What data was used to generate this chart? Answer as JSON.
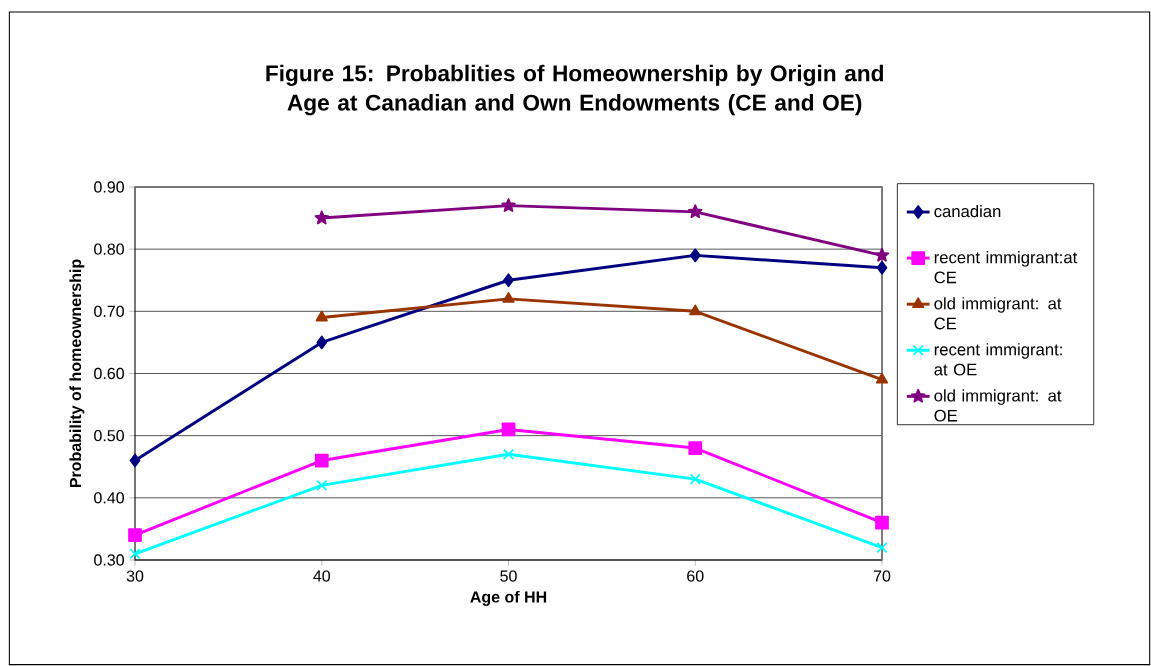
{
  "chart_data": {
    "type": "line",
    "title": "Figure 15: Probablities of Homeownership by Origin and Age at Canadian and Own Endowments (CE and OE)",
    "xlabel": "Age of HH",
    "ylabel": "Probability of homeownership",
    "x": [
      30,
      40,
      50,
      60,
      70
    ],
    "xlim": [
      30,
      70
    ],
    "xticks": [
      30,
      40,
      50,
      60,
      70
    ],
    "ylim": [
      0.3,
      0.9
    ],
    "yticks": [
      {
        "value": 0.3,
        "label": "0.30"
      },
      {
        "value": 0.4,
        "label": "0.40"
      },
      {
        "value": 0.5,
        "label": "0.50"
      },
      {
        "value": 0.6,
        "label": "0.60"
      },
      {
        "value": 0.7,
        "label": "0.70"
      },
      {
        "value": 0.8,
        "label": "0.80"
      },
      {
        "value": 0.9,
        "label": "0.90"
      }
    ],
    "grid": "y",
    "legend": "right",
    "line_style": "solid",
    "series": [
      {
        "name": "canadian",
        "color": "#000080",
        "marker": "diamond",
        "values": [
          0.46,
          0.65,
          0.75,
          0.79,
          0.77
        ]
      },
      {
        "name": "recent immigrant:at CE",
        "color": "#ff00ff",
        "marker": "square",
        "values": [
          0.34,
          0.46,
          0.51,
          0.48,
          0.36
        ]
      },
      {
        "name": "old immigrant: at CE",
        "color": "#993300",
        "marker": "triangle",
        "values": [
          null,
          0.69,
          0.72,
          0.7,
          0.59
        ]
      },
      {
        "name": "recent immigrant: at OE",
        "color": "#00ffff",
        "marker": "cross",
        "values": [
          0.31,
          0.42,
          0.47,
          0.43,
          0.32
        ]
      },
      {
        "name": "old immigrant: at OE",
        "color": "#800080",
        "marker": "star",
        "values": [
          null,
          0.85,
          0.87,
          0.86,
          0.79
        ]
      }
    ]
  }
}
